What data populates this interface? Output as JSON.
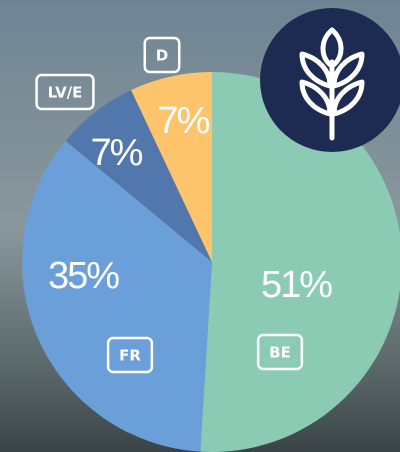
{
  "chart_data": {
    "type": "pie",
    "categories": [
      "BE",
      "FR",
      "LV/E",
      "D"
    ],
    "values": [
      51,
      35,
      7,
      7
    ],
    "value_labels": [
      "51%",
      "35%",
      "7%",
      "7%"
    ],
    "colors": [
      "#8ccbb3",
      "#6a9fd9",
      "#5177ad",
      "#fdc46b"
    ]
  }
}
